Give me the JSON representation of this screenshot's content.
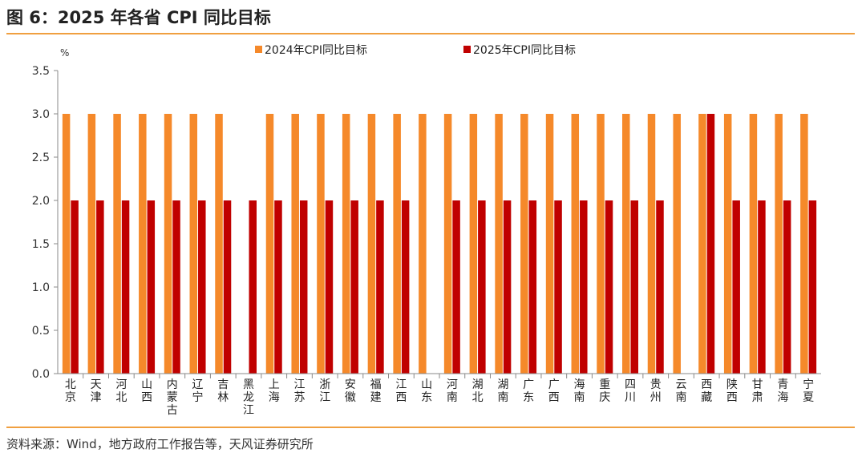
{
  "header": {
    "title": "图 6：2025 年各省 CPI 同比目标"
  },
  "footer": {
    "source": "资料来源：Wind，地方政府工作报告等，天风证券研究所"
  },
  "chart_data": {
    "type": "bar",
    "ylabel": "%",
    "ylim": [
      0,
      3.5
    ],
    "yticks": [
      "0.0",
      "0.5",
      "1.0",
      "1.5",
      "2.0",
      "2.5",
      "3.0",
      "3.5"
    ],
    "legend_position": "top-center",
    "categories": [
      "北京",
      "天津",
      "河北",
      "山西",
      "内蒙古",
      "辽宁",
      "吉林",
      "黑龙江",
      "上海",
      "江苏",
      "浙江",
      "安徽",
      "福建",
      "江西",
      "山东",
      "河南",
      "湖北",
      "湖南",
      "广东",
      "广西",
      "海南",
      "重庆",
      "四川",
      "贵州",
      "云南",
      "西藏",
      "陕西",
      "甘肃",
      "青海",
      "宁夏"
    ],
    "series": [
      {
        "name": "2024年CPI同比目标",
        "color": "#f5892a",
        "values": [
          3,
          3,
          3,
          3,
          3,
          3,
          3,
          null,
          3,
          3,
          3,
          3,
          3,
          3,
          3,
          3,
          3,
          3,
          3,
          3,
          3,
          3,
          3,
          3,
          3,
          3,
          3,
          3,
          3,
          3
        ]
      },
      {
        "name": "2025年CPI同比目标",
        "color": "#c00000",
        "values": [
          2,
          2,
          2,
          2,
          2,
          2,
          2,
          2,
          2,
          2,
          2,
          2,
          2,
          2,
          null,
          2,
          2,
          2,
          2,
          2,
          2,
          2,
          2,
          2,
          null,
          3,
          2,
          2,
          2,
          2
        ]
      }
    ]
  }
}
